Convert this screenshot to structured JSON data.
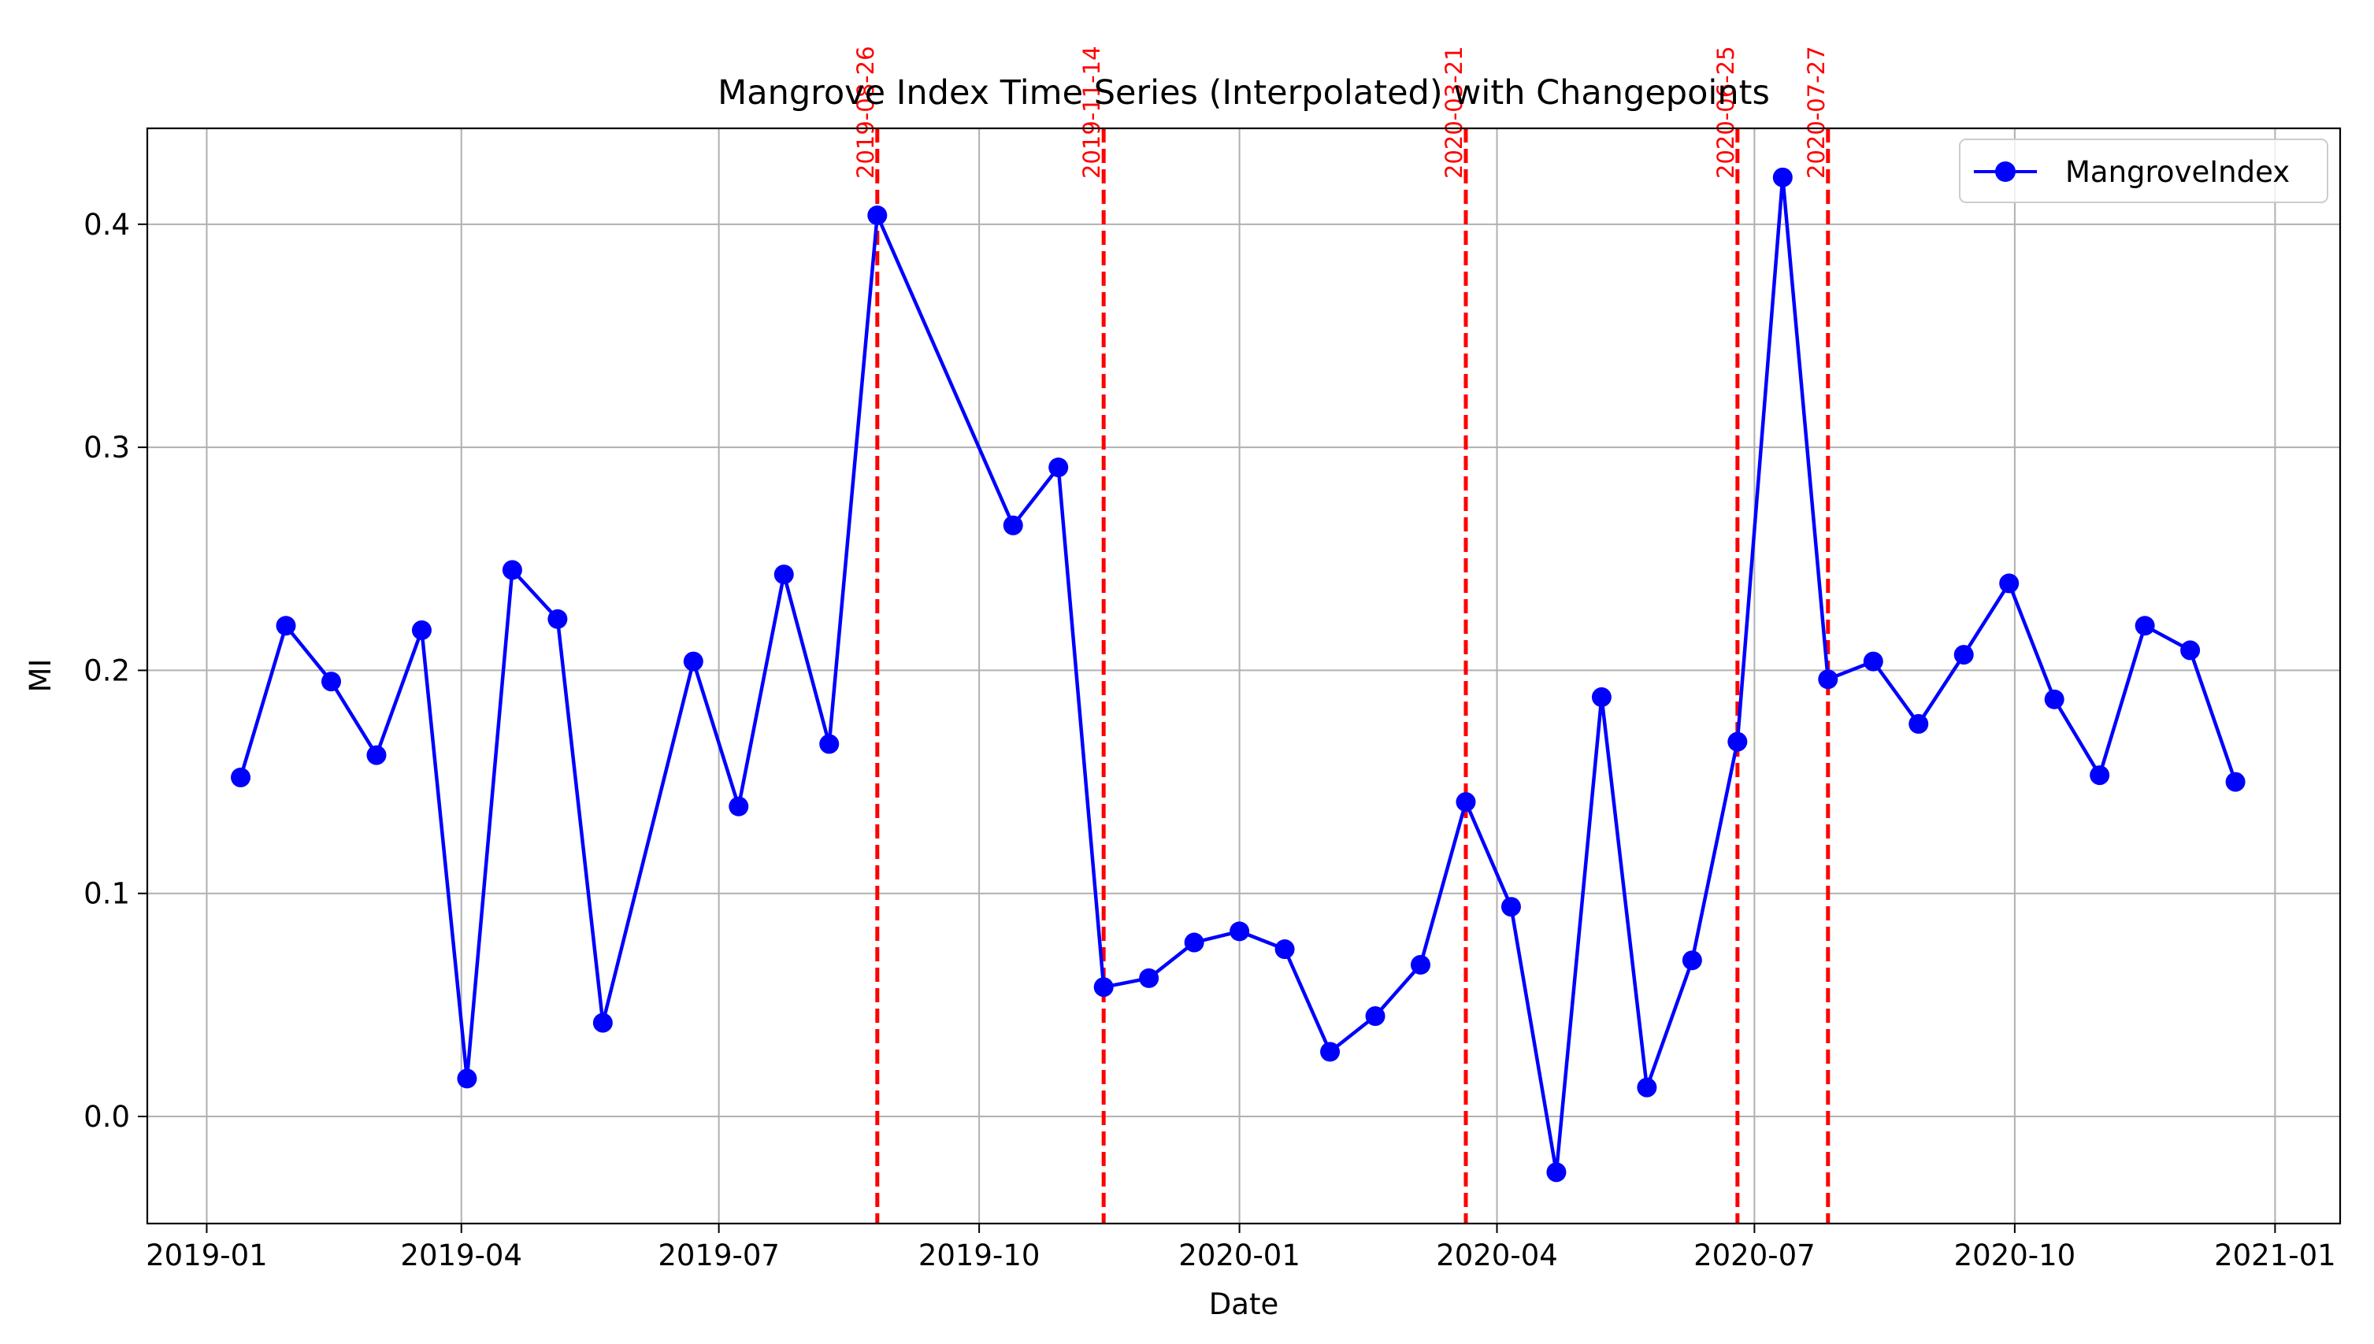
{
  "chart_data": {
    "type": "line",
    "title": "Mangrove Index Time Series (Interpolated) with Changepoints",
    "xlabel": "Date",
    "ylabel": "MI",
    "xlim": [
      "2018-12-11",
      "2021-01-24"
    ],
    "ylim": [
      -0.048,
      0.443
    ],
    "x_ticks": [
      "2019-01",
      "2019-04",
      "2019-07",
      "2019-10",
      "2020-01",
      "2020-04",
      "2020-07",
      "2020-10",
      "2021-01"
    ],
    "y_ticks": [
      "0.0",
      "0.1",
      "0.2",
      "0.3",
      "0.4"
    ],
    "y_tick_values": [
      0.0,
      0.1,
      0.2,
      0.3,
      0.4
    ],
    "grid": true,
    "legend": "top-right",
    "series": [
      {
        "name": "MangroveIndex",
        "color": "#0000ff",
        "x": [
          "2019-01-13",
          "2019-01-29",
          "2019-02-14",
          "2019-03-02",
          "2019-03-18",
          "2019-04-03",
          "2019-04-19",
          "2019-05-05",
          "2019-05-21",
          "2019-06-22",
          "2019-07-08",
          "2019-07-24",
          "2019-08-09",
          "2019-08-26",
          "2019-10-13",
          "2019-10-29",
          "2019-11-14",
          "2019-11-30",
          "2019-12-16",
          "2020-01-01",
          "2020-01-17",
          "2020-02-02",
          "2020-02-18",
          "2020-03-05",
          "2020-03-21",
          "2020-04-06",
          "2020-04-22",
          "2020-05-08",
          "2020-05-24",
          "2020-06-09",
          "2020-06-25",
          "2020-07-11",
          "2020-07-27",
          "2020-08-12",
          "2020-08-28",
          "2020-09-13",
          "2020-09-29",
          "2020-10-15",
          "2020-10-31",
          "2020-11-16",
          "2020-12-02",
          "2020-12-18"
        ],
        "values": [
          0.152,
          0.22,
          0.195,
          0.162,
          0.218,
          0.017,
          0.245,
          0.223,
          0.042,
          0.204,
          0.139,
          0.243,
          0.167,
          0.404,
          0.265,
          0.291,
          0.058,
          0.062,
          0.078,
          0.083,
          0.075,
          0.029,
          0.045,
          0.068,
          0.141,
          0.094,
          -0.025,
          0.188,
          0.013,
          0.07,
          0.168,
          0.421,
          0.196,
          0.204,
          0.176,
          0.207,
          0.239,
          0.187,
          0.153,
          0.22,
          0.209,
          0.15
        ]
      }
    ],
    "changepoints": {
      "color": "#ff0000",
      "dates": [
        "2019-08-26",
        "2019-11-14",
        "2020-03-21",
        "2020-06-25",
        "2020-07-27"
      ]
    }
  }
}
